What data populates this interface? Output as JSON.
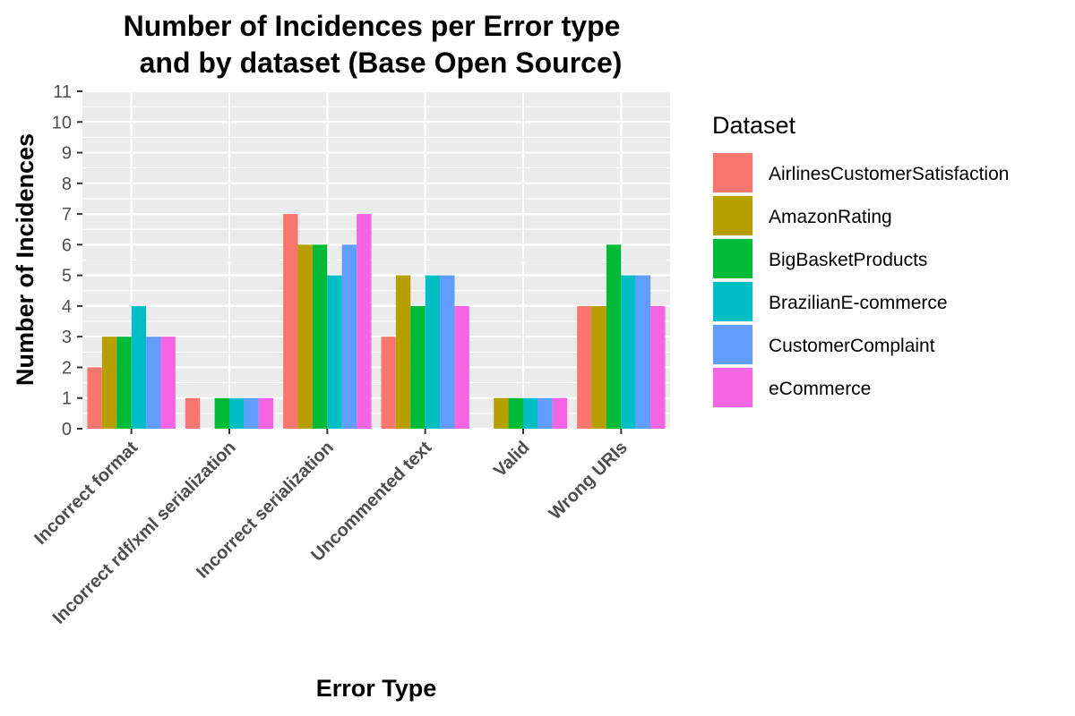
{
  "chart_data": {
    "type": "bar",
    "title": [
      "Number of Incidences per Error type",
      "and by dataset (Base Open Source)"
    ],
    "xlabel": "Error Type",
    "ylabel": "Number of Incidences",
    "ylim": [
      0,
      11
    ],
    "yticks": [
      "0",
      "1",
      "2",
      "3",
      "4",
      "5",
      "6",
      "7",
      "8",
      "9",
      "10",
      "11"
    ],
    "categories": [
      "Incorrect format",
      "Incorrect rdf/xml serialization",
      "Incorrect serialization",
      "Uncommented text",
      "Valid",
      "Wrong URIs"
    ],
    "legend_title": "Dataset",
    "legend_position": "right",
    "grid": true,
    "series": [
      {
        "name": "AirlinesCustomerSatisfaction",
        "color": "#F8766D",
        "values": [
          2,
          1,
          7,
          3,
          0,
          4
        ]
      },
      {
        "name": "AmazonRating",
        "color": "#B79F00",
        "values": [
          3,
          0,
          6,
          5,
          1,
          4
        ]
      },
      {
        "name": "BigBasketProducts",
        "color": "#00BA38",
        "values": [
          3,
          1,
          6,
          4,
          1,
          6
        ]
      },
      {
        "name": "BrazilianE-commerce",
        "color": "#00BFC4",
        "values": [
          4,
          1,
          5,
          5,
          1,
          5
        ]
      },
      {
        "name": "CustomerComplaint",
        "color": "#619CFF",
        "values": [
          3,
          1,
          6,
          5,
          1,
          5
        ]
      },
      {
        "name": "eCommerce",
        "color": "#F564E3",
        "values": [
          3,
          1,
          7,
          4,
          1,
          4
        ]
      }
    ]
  }
}
